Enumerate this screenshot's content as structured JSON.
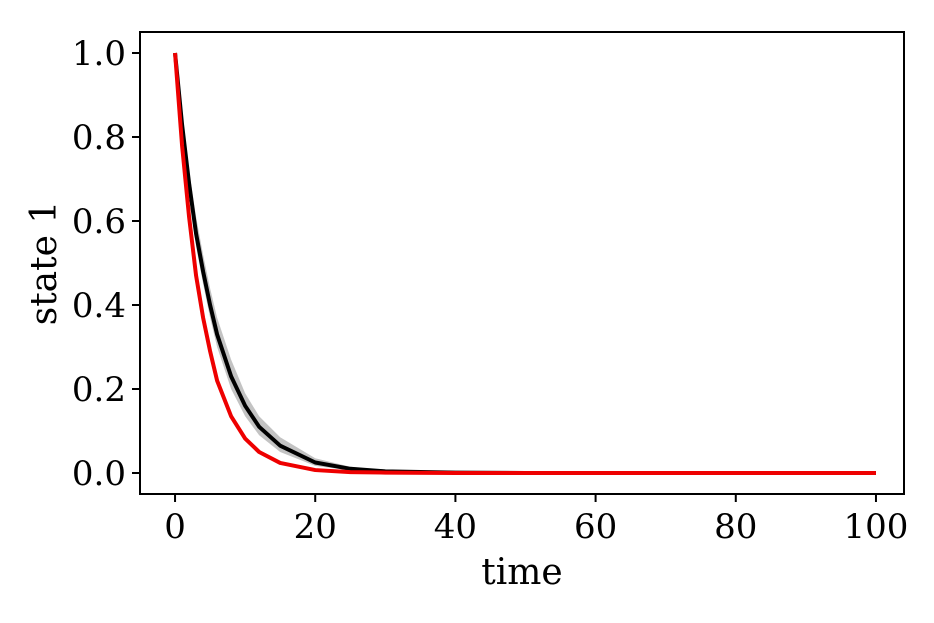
{
  "chart_data": {
    "type": "line",
    "xlabel": "time",
    "ylabel": "state 1",
    "xlim": [
      -5,
      104
    ],
    "ylim": [
      -0.05,
      1.05
    ],
    "x_ticks": [
      0,
      20,
      40,
      60,
      80,
      100
    ],
    "y_ticks": [
      0.0,
      0.2,
      0.4,
      0.6,
      0.8,
      1.0
    ],
    "x_tick_labels": [
      "0",
      "20",
      "40",
      "60",
      "80",
      "100"
    ],
    "y_tick_labels": [
      "0.0",
      "0.2",
      "0.4",
      "0.6",
      "0.8",
      "1.0"
    ],
    "grid": false,
    "legend": "none",
    "x": [
      0,
      1,
      2,
      3,
      4,
      5,
      6,
      8,
      10,
      12,
      15,
      20,
      25,
      30,
      40,
      50,
      60,
      70,
      80,
      90,
      100
    ],
    "series": [
      {
        "color": "#000000",
        "values": [
          1.0,
          0.83,
          0.69,
          0.57,
          0.48,
          0.4,
          0.33,
          0.23,
          0.16,
          0.11,
          0.065,
          0.025,
          0.01,
          0.004,
          0.001,
          0.0,
          0.0,
          0.0,
          0.0,
          0.0,
          0.0
        ],
        "band_lower": [
          1.0,
          0.81,
          0.66,
          0.54,
          0.45,
          0.37,
          0.3,
          0.2,
          0.135,
          0.09,
          0.05,
          0.017,
          0.006,
          0.002,
          0.0,
          0.0,
          0.0,
          0.0,
          0.0,
          0.0,
          0.0
        ],
        "band_upper": [
          1.0,
          0.85,
          0.72,
          0.61,
          0.52,
          0.44,
          0.37,
          0.27,
          0.19,
          0.135,
          0.085,
          0.035,
          0.015,
          0.006,
          0.002,
          0.0,
          0.0,
          0.0,
          0.0,
          0.0,
          0.0
        ]
      },
      {
        "color": "#ee0000",
        "values": [
          1.0,
          0.78,
          0.61,
          0.47,
          0.37,
          0.29,
          0.22,
          0.135,
          0.082,
          0.05,
          0.024,
          0.007,
          0.002,
          0.001,
          0.0,
          0.0,
          0.0,
          0.0,
          0.0,
          0.0,
          0.0
        ]
      }
    ],
    "band_color": "#aaaaaa"
  }
}
